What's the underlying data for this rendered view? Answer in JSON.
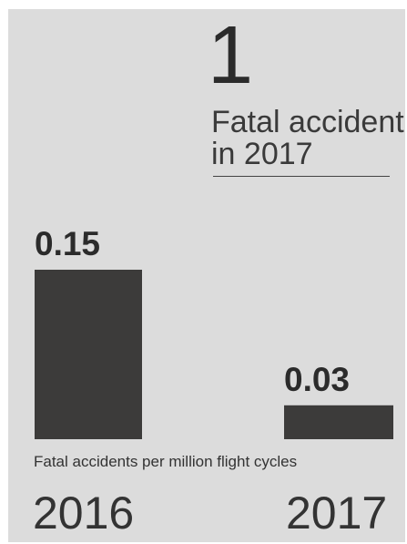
{
  "headline": {
    "count": "1",
    "line1": "Fatal accident",
    "line2": "in 2017"
  },
  "chart_data": {
    "type": "bar",
    "categories": [
      "2016",
      "2017"
    ],
    "values": [
      0.15,
      0.03
    ],
    "value_labels": [
      "0.15",
      "0.03"
    ],
    "xlabel": "Fatal accidents per million flight cycles",
    "ylabel": "",
    "ylim": [
      0,
      0.15
    ],
    "grid": false,
    "bar_color": "#3c3b3a"
  }
}
